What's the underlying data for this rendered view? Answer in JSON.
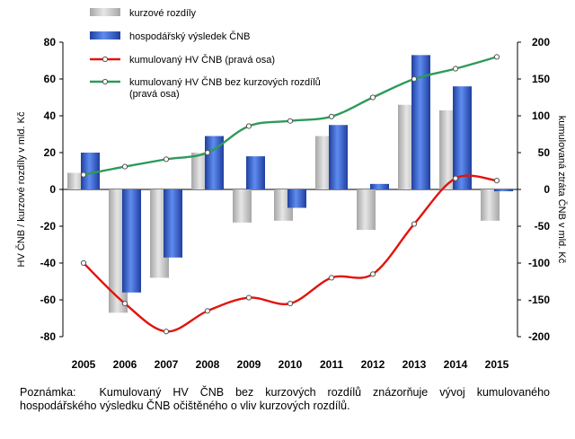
{
  "chart_data": {
    "type": "bar",
    "categories": [
      "2005",
      "2006",
      "2007",
      "2008",
      "2009",
      "2010",
      "2011",
      "2012",
      "2013",
      "2014",
      "2015"
    ],
    "series": [
      {
        "name": "kurzové rozdíly",
        "kind": "bar",
        "axis": "left",
        "color": "#c8c8c8",
        "values": [
          9,
          -67,
          -48,
          20,
          -18,
          -17,
          29,
          -22,
          46,
          43,
          -17
        ]
      },
      {
        "name": "hospodářský výsledek ČNB",
        "kind": "bar",
        "axis": "left",
        "color": "#3a6ad6",
        "values": [
          20,
          -56,
          -37,
          29,
          18,
          -10,
          35,
          3,
          73,
          56,
          -1
        ]
      },
      {
        "name": "kumulovaný HV ČNB (pravá osa)",
        "kind": "line",
        "axis": "right",
        "color": "#e3120b",
        "values": [
          -100,
          -155,
          -193,
          -165,
          -147,
          -155,
          -120,
          -115,
          -47,
          15,
          12
        ]
      },
      {
        "name": "kumulovaný HV ČNB bez kurzových rozdílů (pravá osa)",
        "kind": "line",
        "axis": "right",
        "color": "#2e9a5a",
        "values": [
          20,
          31,
          41,
          50,
          86,
          93,
          99,
          125,
          150,
          164,
          180
        ]
      }
    ],
    "legend": [
      {
        "label": "kurzové rozdíly",
        "type": "bar-grey"
      },
      {
        "label": "hospodářský výsledek ČNB",
        "type": "bar-blue"
      },
      {
        "label": "kumulovaný HV ČNB (pravá osa)",
        "type": "line-red"
      },
      {
        "label1": "kumulovaný HV ČNB bez kurzových rozdílů",
        "label2": "(pravá osa)",
        "type": "line-green"
      }
    ],
    "left_axis": {
      "label": "HV ČNB / kurzové rozdíly v mld. Kč",
      "ylim": [
        -80,
        80
      ],
      "ticks": [
        80,
        60,
        40,
        20,
        0,
        -20,
        -40,
        -60,
        -80
      ]
    },
    "right_axis": {
      "label": "kumulovaná ztráta ČNB v mld. Kč",
      "ylim": [
        -200,
        200
      ],
      "ticks": [
        200,
        150,
        100,
        50,
        0,
        -50,
        -100,
        -150,
        -200
      ]
    },
    "legend_position": "top-left"
  },
  "note": {
    "label": "Poznámka:",
    "text": "Kumulovaný HV ČNB bez kurzových rozdílů znázorňuje vývoj kumulovaného hospodářského výsledku ČNB očištěného o vliv kurzových rozdílů."
  }
}
